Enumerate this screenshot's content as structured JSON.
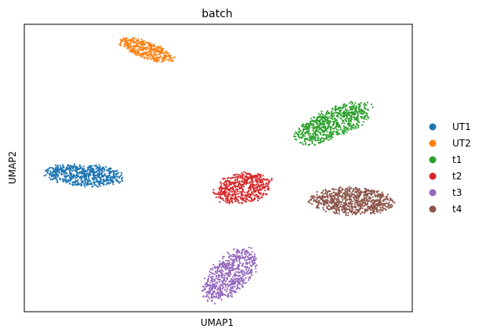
{
  "chart_data": {
    "type": "scatter",
    "title": "batch",
    "xlabel": "UMAP1",
    "ylabel": "UMAP2",
    "xlim": [
      0,
      100
    ],
    "ylim": [
      0,
      100
    ],
    "ticks_visible": false,
    "grid": false,
    "legend_position": "right",
    "series": [
      {
        "name": "UT1",
        "color": "#1f77b4",
        "cluster": {
          "center_x": 15.5,
          "center_y": 47.5,
          "semi_major": 10.5,
          "semi_minor": 4.0,
          "angle_deg": -5,
          "count": 650
        }
      },
      {
        "name": "UT2",
        "color": "#ff7f0e",
        "cluster": {
          "center_x": 31.5,
          "center_y": 91.0,
          "semi_major": 7.8,
          "semi_minor": 3.0,
          "angle_deg": -27,
          "count": 380
        }
      },
      {
        "name": "t1",
        "color": "#2ca02c",
        "cluster": {
          "center_x": 79.5,
          "center_y": 65.5,
          "semi_major": 11.5,
          "semi_minor": 5.0,
          "angle_deg": 33,
          "count": 700
        }
      },
      {
        "name": "t2",
        "color": "#d62728",
        "cluster": {
          "center_x": 56.5,
          "center_y": 43.0,
          "semi_major": 8.0,
          "semi_minor": 5.6,
          "angle_deg": 22,
          "count": 520
        }
      },
      {
        "name": "t3",
        "color": "#9467bd",
        "cluster": {
          "center_x": 53.0,
          "center_y": 13.0,
          "semi_major": 11.0,
          "semi_minor": 5.5,
          "angle_deg": 58,
          "count": 620
        }
      },
      {
        "name": "t4",
        "color": "#8c564b",
        "cluster": {
          "center_x": 84.5,
          "center_y": 38.5,
          "semi_major": 11.0,
          "semi_minor": 5.0,
          "angle_deg": -3,
          "count": 780
        }
      }
    ]
  }
}
